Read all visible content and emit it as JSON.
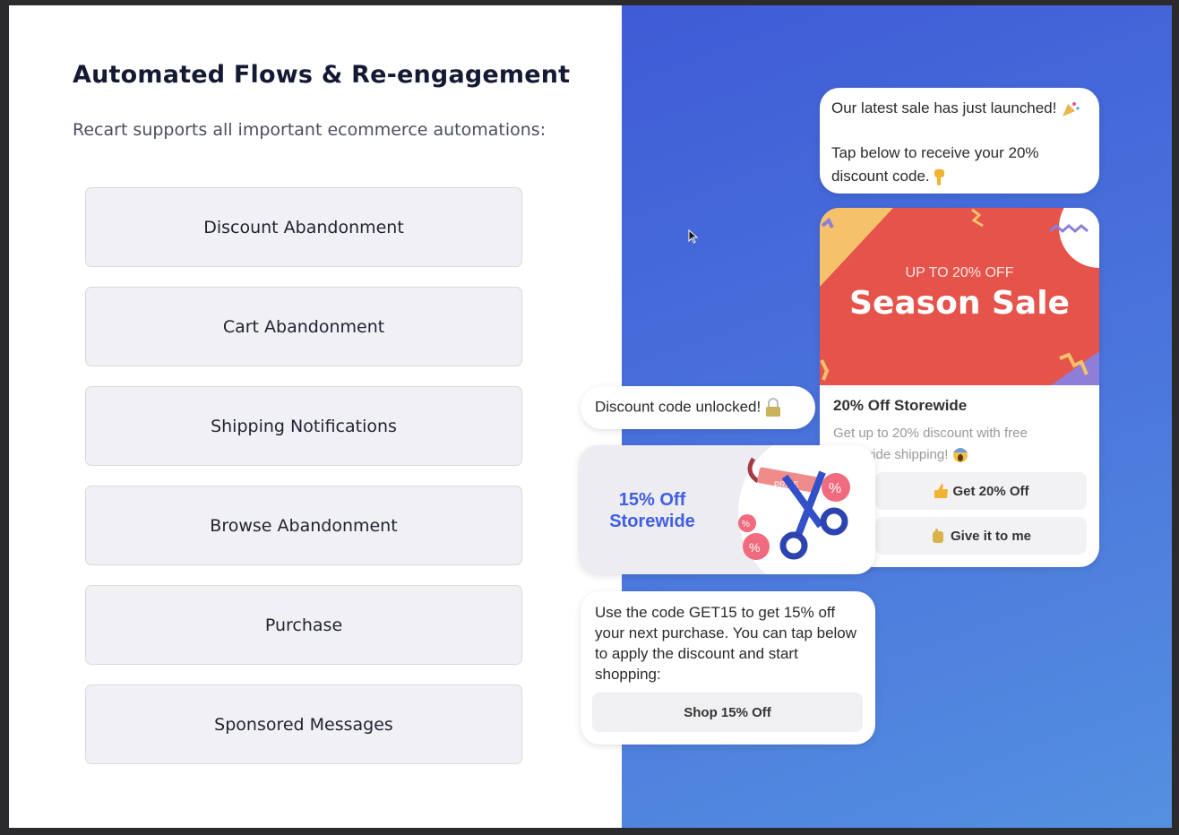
{
  "header": {
    "title": "Automated Flows & Re-engagement",
    "subtitle": "Recart supports all important ecommerce automations:"
  },
  "flows": [
    {
      "label": "Discount Abandonment"
    },
    {
      "label": "Cart Abandonment"
    },
    {
      "label": "Shipping Notifications"
    },
    {
      "label": "Browse Abandonment"
    },
    {
      "label": "Purchase"
    },
    {
      "label": "Sponsored Messages"
    }
  ],
  "chat": {
    "message1": {
      "line1": "Our latest sale has just launched!",
      "line2": "Tap below to receive your 20% discount code.",
      "icons": [
        "party-popper-icon",
        "pointing-down-icon"
      ]
    },
    "sale_card": {
      "banner_kicker": "UP TO 20% OFF",
      "banner_title": "Season Sale",
      "title": "20% Off Storewide",
      "description": "Get up to 20% discount with free storewide shipping!",
      "buttons": [
        {
          "label": "Get 20% Off",
          "icon": "thumbs-up-icon"
        },
        {
          "label": "Give it to me",
          "icon": "raised-hand-icon"
        }
      ]
    },
    "unlocked": {
      "text": "Discount code unlocked!",
      "icon": "padlock-icon"
    },
    "coupon": {
      "line1": "15% Off",
      "line2": "Storewide",
      "tag": "PRICE"
    },
    "message2": {
      "text": "Use the code GET15 to get 15% off your next purchase. You can tap below to apply the discount and start shopping:",
      "button": "Shop 15% Off"
    }
  },
  "colors": {
    "accent": "#4158d6",
    "banner": "#e5534b",
    "coupon_text": "#3f5fe0"
  }
}
